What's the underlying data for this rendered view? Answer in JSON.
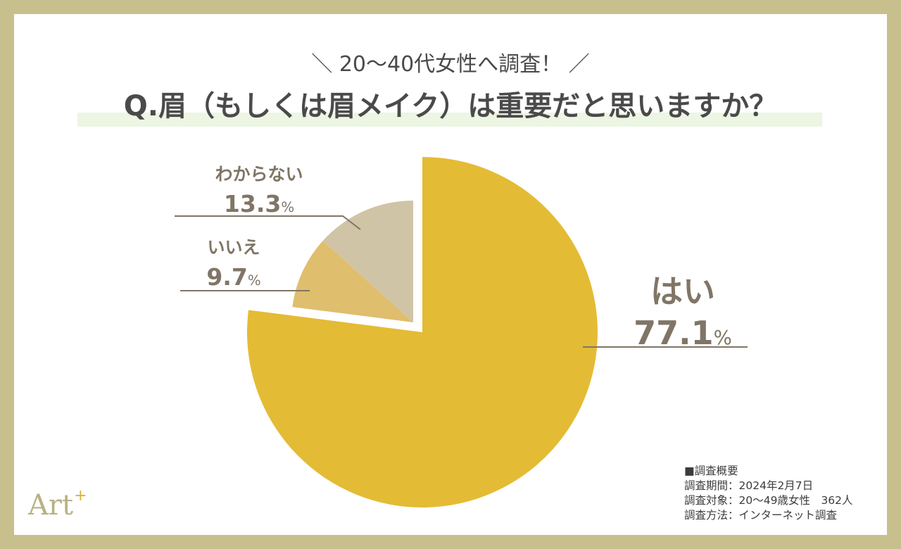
{
  "header": {
    "subtitle": "＼ 20〜40代女性へ調査！ ／",
    "title": "Q.眉（もしくは眉メイク）は重要だと思いますか？"
  },
  "labels": {
    "yes": {
      "name": "はい",
      "value": "77.1",
      "unit": "%"
    },
    "no": {
      "name": "いいえ",
      "value": "9.7",
      "unit": "%"
    },
    "dont_know": {
      "name": "わからない",
      "value": "13.3",
      "unit": "%"
    }
  },
  "survey": {
    "heading": "■調査概要",
    "period": "調査期間：2024年2月7日",
    "target": "調査対象：20〜49歳女性　362人",
    "method": "調査方法：インターネット調査"
  },
  "logo": {
    "text": "Art",
    "sup": "+"
  },
  "colors": {
    "frame": "#c7c08c",
    "yes": "#e4bb35",
    "no": "#dfbe6d",
    "dont_know": "#d0c4a6",
    "label_text": "#807566",
    "leader_line": "#807566",
    "title_highlight": "#edf5e3"
  },
  "chart_data": {
    "type": "pie",
    "title": "Q.眉（もしくは眉メイク）は重要だと思いますか？",
    "subtitle": "＼ 20〜40代女性へ調査！ ／",
    "categories": [
      "はい",
      "いいえ",
      "わからない"
    ],
    "values": [
      77.1,
      9.7,
      13.3
    ],
    "unit": "%",
    "exploded": [
      "いいえ",
      "わからない"
    ],
    "start_angle": "12 o'clock",
    "direction": "clockwise for はい; remaining slices counter-clockwise from top",
    "legend": "none (direct labels with leader lines)",
    "note": "調査期間：2024年2月7日 / 調査対象：20〜49歳女性 362人 / 調査方法：インターネット調査"
  }
}
